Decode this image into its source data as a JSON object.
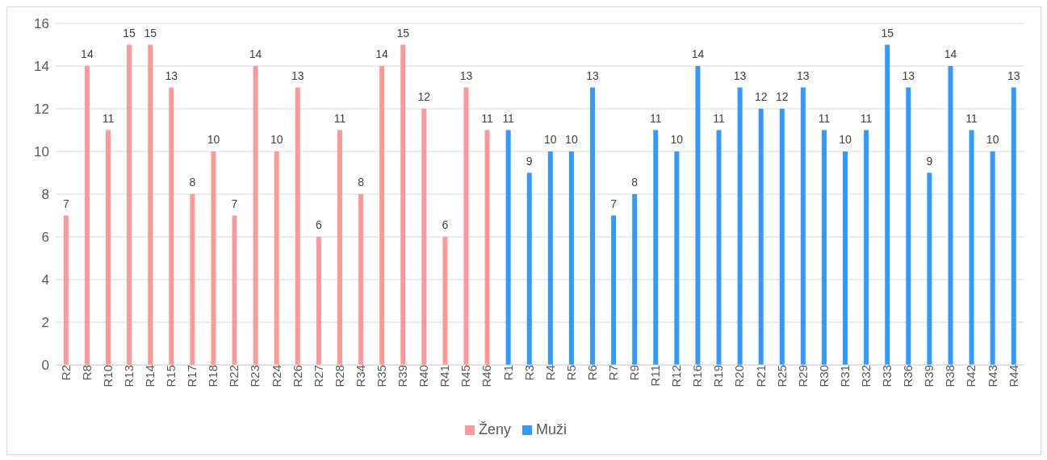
{
  "chart_data": {
    "type": "bar",
    "categories": [
      "R2",
      "R8",
      "R10",
      "R13",
      "R14",
      "R15",
      "R17",
      "R18",
      "R22",
      "R23",
      "R24",
      "R26",
      "R27",
      "R28",
      "R34",
      "R35",
      "R39",
      "R40",
      "R41",
      "R45",
      "R46",
      "R1",
      "R3",
      "R4",
      "R5",
      "R6",
      "R7",
      "R9",
      "R11",
      "R12",
      "R16",
      "R19",
      "R20",
      "R21",
      "R25",
      "R29",
      "R30",
      "R31",
      "R32",
      "R33",
      "R36",
      "R39",
      "R38",
      "R42",
      "R43",
      "R44"
    ],
    "series": [
      {
        "name": "Ženy",
        "color": "#ff9999",
        "values": [
          7,
          14,
          11,
          15,
          15,
          13,
          8,
          10,
          7,
          14,
          10,
          13,
          6,
          11,
          8,
          14,
          15,
          12,
          6,
          13,
          11,
          null,
          null,
          null,
          null,
          null,
          null,
          null,
          null,
          null,
          null,
          null,
          null,
          null,
          null,
          null,
          null,
          null,
          null,
          null,
          null,
          null,
          null,
          null,
          null,
          null
        ]
      },
      {
        "name": "Muži",
        "color": "#3399ff",
        "values": [
          null,
          null,
          null,
          null,
          null,
          null,
          null,
          null,
          null,
          null,
          null,
          null,
          null,
          null,
          null,
          null,
          null,
          null,
          null,
          null,
          null,
          11,
          9,
          10,
          10,
          13,
          7,
          8,
          11,
          10,
          14,
          11,
          13,
          12,
          12,
          13,
          11,
          10,
          11,
          15,
          13,
          9,
          14,
          11,
          10,
          13
        ]
      }
    ],
    "ylim": [
      0,
      16
    ],
    "yticks": [
      0,
      2,
      4,
      6,
      8,
      10,
      12,
      14,
      16
    ],
    "grid": "y",
    "legend": "bottom",
    "data_labels": true
  }
}
